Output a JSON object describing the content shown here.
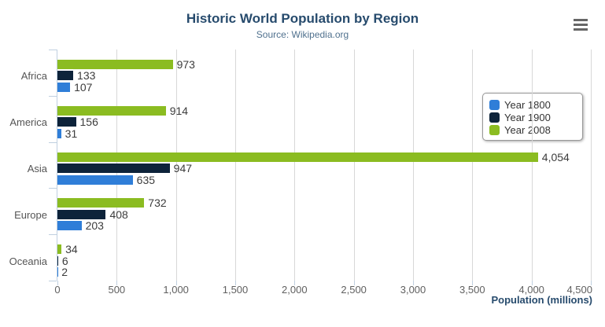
{
  "header": {
    "title": "Historic World Population by Region",
    "subtitle": "Source: Wikipedia.org"
  },
  "chart_data": {
    "type": "bar",
    "orientation": "horizontal",
    "title": "Historic World Population by Region",
    "subtitle": "Source: Wikipedia.org",
    "categories": [
      "Africa",
      "America",
      "Asia",
      "Europe",
      "Oceania"
    ],
    "series": [
      {
        "name": "Year 1800",
        "color": "#2f7ed8",
        "values": [
          107,
          31,
          635,
          203,
          2
        ]
      },
      {
        "name": "Year 1900",
        "color": "#0d233a",
        "values": [
          133,
          156,
          947,
          408,
          6
        ]
      },
      {
        "name": "Year 2008",
        "color": "#8bbc21",
        "values": [
          973,
          914,
          4054,
          732,
          34
        ]
      }
    ],
    "bar_order_top_to_bottom": [
      "Year 2008",
      "Year 1900",
      "Year 1800"
    ],
    "data_labels": true,
    "xlabel": "Population (millions)",
    "ylabel": "",
    "xlim": [
      0,
      4500
    ],
    "x_ticks": [
      0,
      500,
      1000,
      1500,
      2000,
      2500,
      3000,
      3500,
      4000,
      4500
    ],
    "x_tick_labels": [
      "0",
      "500",
      "1,000",
      "1,500",
      "2,000",
      "2,500",
      "3,000",
      "3,500",
      "4,000",
      "4,500"
    ],
    "grid": true,
    "legend": {
      "position": "right",
      "items": [
        "Year 1800",
        "Year 1900",
        "Year 2008"
      ]
    }
  },
  "colors": {
    "title": "#274b6d",
    "subtitle": "#50718e",
    "axis_label": "#606060",
    "data_label": "#3c3c3c",
    "gridline": "#d8d8d8",
    "axis_line": "#c0d0e0",
    "legend_border": "#999999",
    "menu_icon": "#666666",
    "background": "#ffffff"
  },
  "icons": {
    "menu": "hamburger-icon"
  }
}
